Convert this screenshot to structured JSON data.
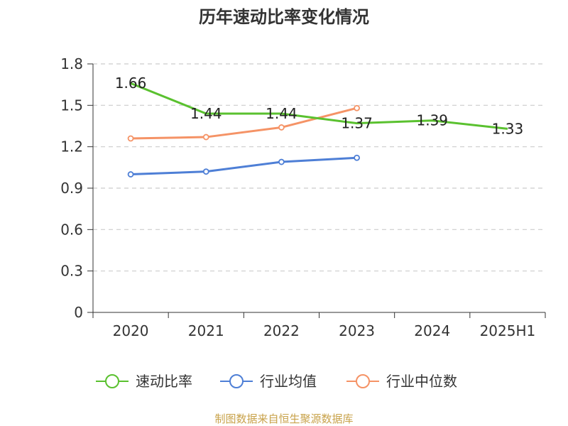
{
  "chart_data": {
    "type": "line",
    "title": "历年速动比率变化情况",
    "categories": [
      "2020",
      "2021",
      "2022",
      "2023",
      "2024",
      "2025H1"
    ],
    "y_ticks": [
      "0",
      "0.3",
      "0.6",
      "0.9",
      "1.2",
      "1.5",
      "1.8"
    ],
    "ylim": [
      0,
      1.8
    ],
    "grid": true,
    "legend_position": "bottom",
    "series": [
      {
        "name": "速动比率",
        "color": "#5ac12f",
        "values": [
          1.66,
          1.44,
          1.44,
          1.37,
          1.39,
          1.33
        ],
        "labels": [
          "1.66",
          "1.44",
          "1.44",
          "1.37",
          "1.39",
          "1.33"
        ],
        "show_markers": false
      },
      {
        "name": "行业均值",
        "color": "#4e7fd6",
        "values": [
          1.0,
          1.02,
          1.09,
          1.12,
          null,
          null
        ],
        "show_markers": true
      },
      {
        "name": "行业中位数",
        "color": "#f59366",
        "values": [
          1.26,
          1.27,
          1.34,
          1.48,
          null,
          null
        ],
        "show_markers": true
      }
    ],
    "source": "制图数据来自恒生聚源数据库"
  }
}
